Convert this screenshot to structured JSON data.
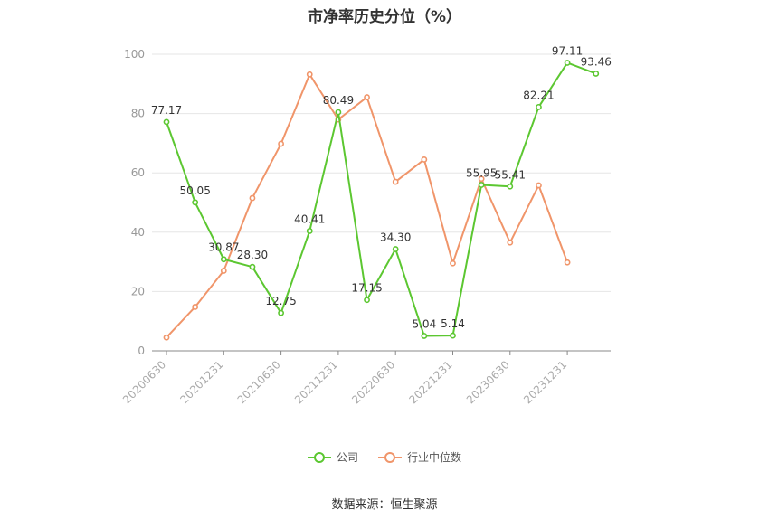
{
  "chart_data": {
    "type": "line",
    "title": "市净率历史分位（%）",
    "source": "数据来源：恒生聚源",
    "ylim": [
      0,
      100
    ],
    "yticks": [
      0,
      20,
      40,
      60,
      80,
      100
    ],
    "x": [
      "20200630",
      "20200930",
      "20201231",
      "20210331",
      "20210630",
      "20210930",
      "20211231",
      "20220331",
      "20220630",
      "20220930",
      "20221231",
      "20230331",
      "20230630",
      "20230930",
      "20231231",
      "20240331"
    ],
    "xtick_labels": [
      "20200630",
      "20201231",
      "20210630",
      "20211231",
      "20220630",
      "20221231",
      "20230630",
      "20231231"
    ],
    "grid": true,
    "legend_position": "bottom",
    "series": [
      {
        "name": "公司",
        "color": "#5cc731",
        "values": [
          77.17,
          50.05,
          30.87,
          28.3,
          12.75,
          40.41,
          80.49,
          17.15,
          34.3,
          5.04,
          5.14,
          55.95,
          55.41,
          82.21,
          97.11,
          93.46
        ],
        "labels": [
          "77.17",
          "50.05",
          "30.87",
          "28.30",
          "12.75",
          "40.41",
          "80.49",
          "17.15",
          "34.30",
          "5.04",
          "5.14",
          "55.95",
          "55.41",
          "82.21",
          "97.11",
          "93.46"
        ]
      },
      {
        "name": "行业中位数",
        "color": "#f0956a",
        "values": [
          4.5,
          14.8,
          27.0,
          51.5,
          69.8,
          93.2,
          78.0,
          85.5,
          57.0,
          64.5,
          29.5,
          58.0,
          36.5,
          55.8,
          29.8,
          null
        ]
      }
    ]
  }
}
